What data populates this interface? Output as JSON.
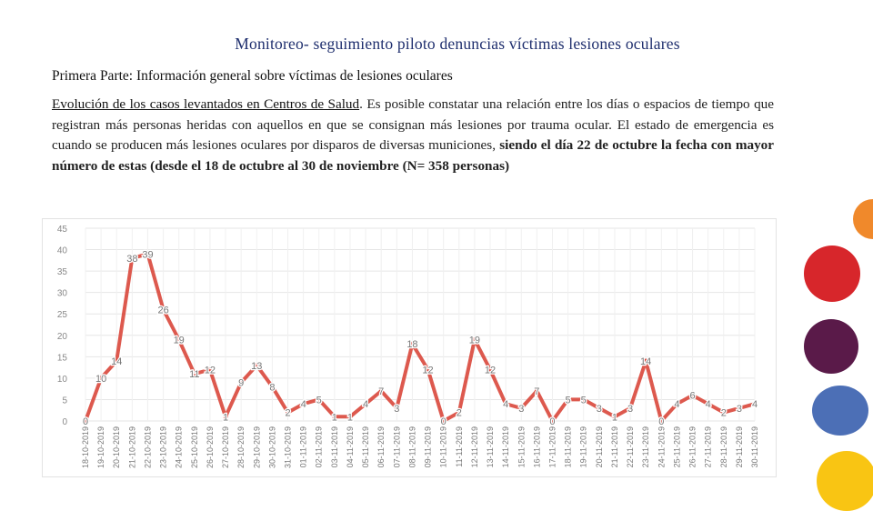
{
  "header": {
    "title": "Monitoreo- seguimiento piloto denuncias víctimas lesiones oculares"
  },
  "section_title": "Primera Parte: Información general sobre víctimas de lesiones oculares",
  "paragraph": {
    "heading": "Evolución de los casos levantados en Centros de Salud",
    "body": ". Es posible constatar una relación entre los días o espacios de tiempo que registran más personas heridas con aquellos en que se consignan más lesiones por trauma ocular. El estado de emergencia es cuando se producen más lesiones oculares por disparos de diversas municiones, ",
    "bold": "siendo el día 22 de octubre la fecha con mayor número de estas (desde el 18 de octubre al 30 de noviembre (N= 358 personas)"
  },
  "colors": {
    "line": "#d9473b",
    "title": "#1f2f6e",
    "circles": [
      "#f0892b",
      "#d7262b",
      "#5a1a49",
      "#4c6fb6",
      "#f9c513"
    ]
  },
  "chart_data": {
    "type": "line",
    "title": "",
    "xlabel": "",
    "ylabel": "",
    "ylim": [
      0,
      45
    ],
    "yticks": [
      0,
      5,
      10,
      15,
      20,
      25,
      30,
      35,
      40,
      45
    ],
    "grid": true,
    "legend": "none",
    "x": [
      "18-10-2019",
      "19-10-2019",
      "20-10-2019",
      "21-10-2019",
      "22-10-2019",
      "23-10-2019",
      "24-10-2019",
      "25-10-2019",
      "26-10-2019",
      "27-10-2019",
      "28-10-2019",
      "29-10-2019",
      "30-10-2019",
      "31-10-2019",
      "01-11-2019",
      "02-11-2019",
      "03-11-2019",
      "04-11-2019",
      "05-11-2019",
      "06-11-2019",
      "07-11-2019",
      "08-11-2019",
      "09-11-2019",
      "10-11-2019",
      "11-11-2019",
      "12-11-2019",
      "13-11-2019",
      "14-11-2019",
      "15-11-2019",
      "16-11-2019",
      "17-11-2019",
      "18-11-2019",
      "19-11-2019",
      "20-11-2019",
      "21-11-2019",
      "22-11-2019",
      "23-11-2019",
      "24-11-2019",
      "25-11-2019",
      "26-11-2019",
      "27-11-2019",
      "28-11-2019",
      "29-11-2019",
      "30-11-2019"
    ],
    "values": [
      0,
      10,
      14,
      38,
      39,
      26,
      19,
      11,
      12,
      1,
      9,
      13,
      8,
      2,
      4,
      5,
      1,
      1,
      4,
      7,
      3,
      18,
      12,
      0,
      2,
      19,
      12,
      4,
      3,
      7,
      0,
      5,
      5,
      3,
      1,
      3,
      14,
      0,
      4,
      6,
      4,
      2,
      3,
      4
    ]
  }
}
